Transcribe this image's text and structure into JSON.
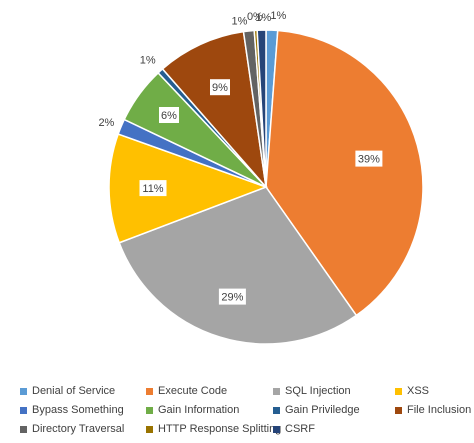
{
  "chart_data": {
    "type": "pie",
    "title": "",
    "start_angle_deg": 0,
    "direction": "clockwise",
    "legend_position": "bottom",
    "slices": [
      {
        "name": "Denial of Service",
        "value": 1.2,
        "label": "1%",
        "color": "#5b9bd5"
      },
      {
        "name": "Execute Code",
        "value": 39.2,
        "label": "39%",
        "color": "#ed7d31"
      },
      {
        "name": "SQL Injection",
        "value": 29.1,
        "label": "29%",
        "color": "#a5a5a5"
      },
      {
        "name": "XSS",
        "value": 11.3,
        "label": "11%",
        "color": "#ffc000"
      },
      {
        "name": "Bypass Something",
        "value": 1.6,
        "label": "2%",
        "color": "#4472c4"
      },
      {
        "name": "Gain Information",
        "value": 5.9,
        "label": "6%",
        "color": "#70ad47"
      },
      {
        "name": "Gain Priviledge",
        "value": 0.6,
        "label": "1%",
        "color": "#255e91"
      },
      {
        "name": "File Inclusion",
        "value": 9.2,
        "label": "9%",
        "color": "#9e480e"
      },
      {
        "name": "Directory Traversal",
        "value": 1.1,
        "label": "1%",
        "color": "#636363"
      },
      {
        "name": "HTTP Response Splitting",
        "value": 0.3,
        "label": "0%",
        "color": "#997300"
      },
      {
        "name": "CSRF",
        "value": 0.9,
        "label": "1%",
        "color": "#264478"
      }
    ]
  }
}
